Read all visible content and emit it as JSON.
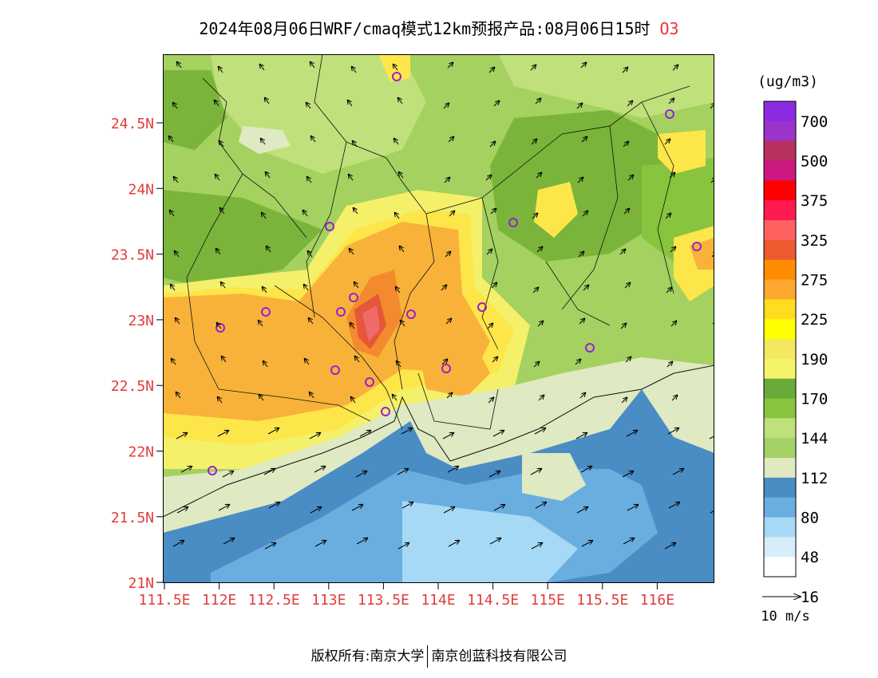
{
  "title": {
    "main": "2024年08月06日WRF/cmaq模式12km预报产品:08月06日15时",
    "pollutant": "O3"
  },
  "colors": {
    "lat_label": "#e33b3b",
    "lon_label": "#e33b3b",
    "sea_deep": "#4a8cc4",
    "sea_mid": "#6aaee0",
    "sea_light": "#a6d9f5",
    "land_80": "#dfe9c2",
    "land_112": "#bfe07a",
    "land_128": "#a4d160",
    "land_144": "#7bb43a",
    "land_170": "#f4f06a",
    "land_190": "#fde64a",
    "land_225": "#f8b23a",
    "land_275": "#f48a2e",
    "land_300": "#e6573a"
  },
  "axes": {
    "lat_labels": [
      "24.5N",
      "24N",
      "23.5N",
      "23N",
      "22.5N",
      "22N",
      "21.5N",
      "21N"
    ],
    "lon_labels": [
      "111.5E",
      "112E",
      "112.5E",
      "113E",
      "113.5E",
      "114E",
      "114.5E",
      "115E",
      "115.5E",
      "116E"
    ]
  },
  "legend": {
    "unit": "(ug/m3)",
    "labels": [
      "700",
      "500",
      "375",
      "325",
      "275",
      "225",
      "190",
      "170",
      "144",
      "112",
      "80",
      "48",
      "16"
    ],
    "colors": [
      "#8a2be2",
      "#9b34c8",
      "#b8305e",
      "#cc1880",
      "#ff0000",
      "#ff1a50",
      "#ff6060",
      "#ee5a30",
      "#ff8c00",
      "#ffa830",
      "#ffdc20",
      "#ffff00",
      "#f4e860",
      "#f4f46a",
      "#6aaa3a",
      "#88c43e",
      "#bfe07a",
      "#a4d166",
      "#dfe9c2",
      "#4a8cc4",
      "#6aaee0",
      "#a6d9f5",
      "#d6eefa",
      "#ffffff"
    ]
  },
  "wind_legend": {
    "label": "10 m/s"
  },
  "footer": {
    "left": "版权所有:南京大学",
    "right": "南京创蓝科技有限公司"
  }
}
